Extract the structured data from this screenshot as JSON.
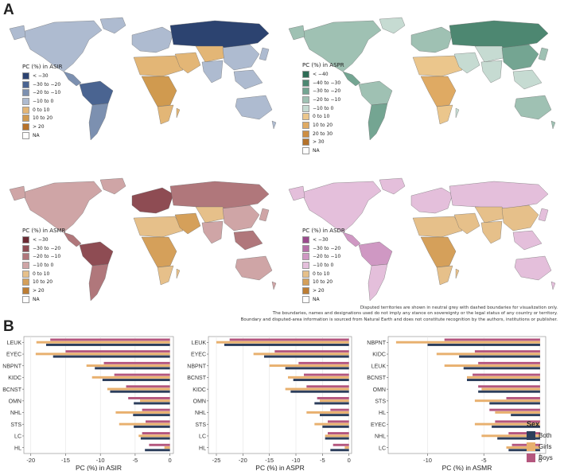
{
  "panels": {
    "a_label": "A",
    "b_label": "B"
  },
  "maps": [
    {
      "id": "asir",
      "legend_title": "PC (%) in ASIR",
      "legend": [
        {
          "label": "< −30",
          "color": "#2c4370"
        },
        {
          "label": "−30 to −20",
          "color": "#4a6491"
        },
        {
          "label": "−20 to −10",
          "color": "#7c90b0"
        },
        {
          "label": "−10 to 0",
          "color": "#aebbd0"
        },
        {
          "label": "0 to 10",
          "color": "#e3b676"
        },
        {
          "label": "10 to 20",
          "color": "#d09a4f"
        },
        {
          "label": "> 20",
          "color": "#b7722a"
        },
        {
          "label": "NA",
          "color": "#ffffff"
        }
      ]
    },
    {
      "id": "aspr",
      "legend_title": "PC (%) in ASPR",
      "legend": [
        {
          "label": "< −40",
          "color": "#2e6b55"
        },
        {
          "label": "−40 to −30",
          "color": "#4d8771"
        },
        {
          "label": "−30 to −20",
          "color": "#74a592"
        },
        {
          "label": "−20 to −10",
          "color": "#9fc1b3"
        },
        {
          "label": "−10 to 0",
          "color": "#c6dbd2"
        },
        {
          "label": "0 to 10",
          "color": "#ebc68c"
        },
        {
          "label": "10 to 20",
          "color": "#dfaa63"
        },
        {
          "label": "20 to 30",
          "color": "#cd8e43"
        },
        {
          "label": "> 30",
          "color": "#b4722b"
        },
        {
          "label": "NA",
          "color": "#ffffff"
        }
      ]
    },
    {
      "id": "asmr",
      "legend_title": "PC (%) in ASMR",
      "legend": [
        {
          "label": "< −30",
          "color": "#6b2a33"
        },
        {
          "label": "−30 to −20",
          "color": "#8e4c53"
        },
        {
          "label": "−20 to −10",
          "color": "#b0777b"
        },
        {
          "label": "−10 to 0",
          "color": "#cfa5a6"
        },
        {
          "label": "0 to 10",
          "color": "#e6c08a"
        },
        {
          "label": "10 to 20",
          "color": "#d5a05a"
        },
        {
          "label": "> 20",
          "color": "#bd7d33"
        },
        {
          "label": "NA",
          "color": "#ffffff"
        }
      ]
    },
    {
      "id": "asdr",
      "legend_title": "PC (%) in ASDR",
      "legend": [
        {
          "label": "< −30",
          "color": "#9a4a8c"
        },
        {
          "label": "−30 to −20",
          "color": "#b56fa7"
        },
        {
          "label": "−20 to −10",
          "color": "#cf98c3"
        },
        {
          "label": "−10 to 0",
          "color": "#e4bfdb"
        },
        {
          "label": "0 to 10",
          "color": "#e6c08a"
        },
        {
          "label": "10 to 20",
          "color": "#d5a05a"
        },
        {
          "label": "> 20",
          "color": "#bd7d33"
        },
        {
          "label": "NA",
          "color": "#ffffff"
        }
      ]
    }
  ],
  "disclaimer": [
    "Disputed territories are shown in neutral grey with dashed boundaries for visualization only.",
    "The boundaries, names and designations used do not imply any stance on sovereignty or the legal status of any country or territory.",
    "Boundary and disputed-area information is sourced from Natural Earth and does not constitute recognition by the authors, institutions or publisher."
  ],
  "colors": {
    "Both": "#2c3e5c",
    "Girls": "#e8b06e",
    "Boys": "#b4567e"
  },
  "sex_legend": {
    "title": "Sex",
    "items": [
      "Both",
      "Girls",
      "Boys"
    ]
  },
  "chart_data": [
    {
      "type": "bar",
      "orientation": "horizontal",
      "xlabel": "PC (%) in ASIR",
      "xlim": [
        -21,
        0.5
      ],
      "xticks": [
        -20,
        -15,
        -10,
        -5,
        0
      ],
      "categories": [
        "LEUK",
        "EYEC",
        "NBPNT",
        "KIDC",
        "BCNST",
        "OMN",
        "NHL",
        "STS",
        "LC",
        "HL"
      ],
      "series": [
        {
          "name": "Boys",
          "values": [
            -17.2,
            -15.0,
            -9.5,
            -8.0,
            -6.3,
            -6.0,
            -4.0,
            -3.5,
            -4.0,
            -3.0
          ]
        },
        {
          "name": "Girls",
          "values": [
            -19.2,
            -19.3,
            -12.0,
            -11.2,
            -9.0,
            -4.3,
            -7.8,
            -7.3,
            -4.5,
            -0.8
          ]
        },
        {
          "name": "Both",
          "values": [
            -17.8,
            -16.8,
            -10.8,
            -9.7,
            -8.6,
            -5.2,
            -5.3,
            -5.2,
            -4.2,
            -3.6
          ]
        }
      ]
    },
    {
      "type": "bar",
      "orientation": "horizontal",
      "xlabel": "PC (%) in ASPR",
      "xlim": [
        -26.5,
        0.5
      ],
      "xticks": [
        -25,
        -20,
        -15,
        -10,
        -5,
        0
      ],
      "categories": [
        "LEUK",
        "EYEC",
        "NBPNT",
        "BCNST",
        "KIDC",
        "OMN",
        "NHL",
        "STS",
        "LC",
        "HL"
      ],
      "series": [
        {
          "name": "Boys",
          "values": [
            -22.5,
            -14.0,
            -9.5,
            -8.5,
            -8.0,
            -6.0,
            -3.5,
            -4.0,
            -4.0,
            -3.0
          ]
        },
        {
          "name": "Girls",
          "values": [
            -25.0,
            -18.0,
            -15.0,
            -11.5,
            -12.0,
            -5.5,
            -8.0,
            -6.5,
            -4.5,
            -0.8
          ]
        },
        {
          "name": "Both",
          "values": [
            -23.5,
            -16.0,
            -12.0,
            -10.5,
            -11.0,
            -6.5,
            -5.5,
            -5.0,
            -4.5,
            -3.5
          ]
        }
      ]
    },
    {
      "type": "bar",
      "orientation": "horizontal",
      "xlabel": "PC (%) in ASMR",
      "xlim": [
        -13.5,
        0.5
      ],
      "xticks": [
        -10,
        -5,
        0
      ],
      "categories": [
        "NBPNT",
        "KIDC",
        "LEUK",
        "BCNST",
        "OMN",
        "STS",
        "HL",
        "EYEC",
        "NHL",
        "LC"
      ],
      "series": [
        {
          "name": "Boys",
          "values": [
            -8.5,
            -5.8,
            -5.5,
            -6.0,
            -5.5,
            -3.0,
            -4.5,
            -4.0,
            -2.8,
            -2.5
          ]
        },
        {
          "name": "Girls",
          "values": [
            -12.8,
            -9.2,
            -8.5,
            -6.5,
            -5.2,
            -5.8,
            -4.0,
            -5.8,
            -5.2,
            -3.0
          ]
        },
        {
          "name": "Both",
          "values": [
            -10.0,
            -7.2,
            -6.8,
            -6.5,
            -5.5,
            -4.5,
            -2.6,
            -4.3,
            -3.8,
            -2.8
          ]
        }
      ]
    }
  ]
}
